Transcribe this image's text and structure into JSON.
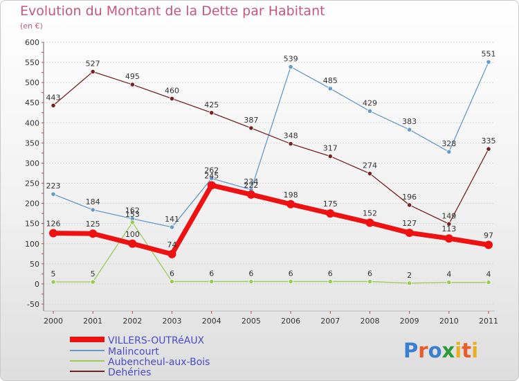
{
  "title": "Evolution du Montant de la Dette par Habitant",
  "unit_label": "(en €)",
  "logo_text": "Proxiti",
  "colors": {
    "title": "#c4577f",
    "axis_text": "#333333",
    "grid": "#d8d8d8",
    "legend_text": "#4a4ad0"
  },
  "chart_data": {
    "type": "line",
    "categories": [
      "2000",
      "2001",
      "2002",
      "2003",
      "2004",
      "2005",
      "2006",
      "2007",
      "2008",
      "2009",
      "2010",
      "2011"
    ],
    "ylim": [
      -50,
      600
    ],
    "yticks": [
      -50,
      0,
      50,
      100,
      150,
      200,
      250,
      300,
      350,
      400,
      450,
      500,
      550,
      600
    ],
    "grid": true,
    "legend_position": "bottom-left",
    "series": [
      {
        "name": "VILLERS-OUTRéAUX",
        "color": "#ee1111",
        "values": [
          126,
          125,
          100,
          74,
          245,
          222,
          198,
          175,
          152,
          127,
          113,
          97
        ],
        "labels": [
          "126",
          "125",
          "100",
          "74",
          "245",
          "222",
          "198",
          "175",
          "152",
          "127",
          "113",
          "97"
        ]
      },
      {
        "name": "Malincourt",
        "color": "#6699cc",
        "values": [
          223,
          184,
          162,
          141,
          262,
          234,
          539,
          485,
          429,
          383,
          328,
          551
        ],
        "labels": [
          "223",
          "184",
          "162",
          "141",
          "262",
          "234",
          "539",
          "485",
          "429",
          "383",
          "328",
          "551"
        ]
      },
      {
        "name": "Aubencheul-aux-Bois",
        "color": "#99cc55",
        "values": [
          5,
          5,
          153,
          6,
          6,
          6,
          6,
          6,
          6,
          2,
          4,
          4
        ],
        "labels": [
          "5",
          "5",
          "153",
          "6",
          "6",
          "6",
          "6",
          "6",
          "6",
          "2",
          "4",
          "4"
        ]
      },
      {
        "name": "Dehéries",
        "color": "#772222",
        "values": [
          443,
          527,
          495,
          460,
          425,
          387,
          348,
          317,
          274,
          196,
          149,
          335
        ],
        "labels": [
          "443",
          "527",
          "495",
          "460",
          "425",
          "387",
          "348",
          "317",
          "274",
          "196",
          "149",
          "335"
        ]
      }
    ]
  }
}
